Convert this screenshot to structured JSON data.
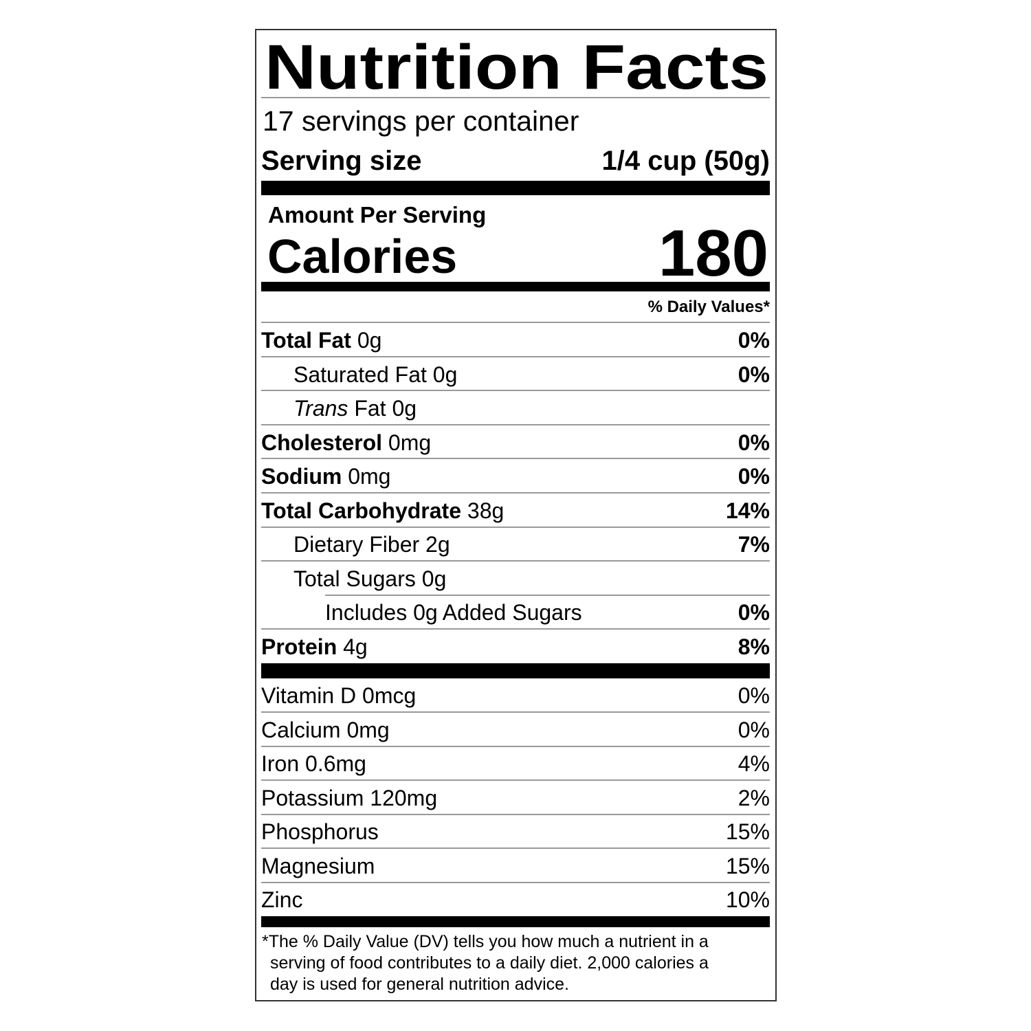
{
  "label": {
    "title": "Nutrition Facts",
    "servings_per_container": "17 servings per container",
    "serving_size_label": "Serving size",
    "serving_size_value": "1/4 cup (50g)",
    "amount_per_serving": "Amount Per Serving",
    "calories_label": "Calories",
    "calories_value": "180",
    "daily_values_header": "% Daily Values*",
    "nutrients": [
      {
        "name": "Total Fat",
        "amount": "0g",
        "dv": "0%"
      },
      {
        "name": "Saturated Fat",
        "amount": "0g",
        "dv": "0%"
      },
      {
        "name_italic": "Trans",
        "name": "Fat",
        "amount": "0g",
        "dv": ""
      },
      {
        "name": "Cholesterol",
        "amount": "0mg",
        "dv": "0%"
      },
      {
        "name": "Sodium",
        "amount": "0mg",
        "dv": "0%"
      },
      {
        "name": "Total Carbohydrate",
        "amount": "38g",
        "dv": "14%"
      },
      {
        "name": "Dietary Fiber",
        "amount": "2g",
        "dv": "7%"
      },
      {
        "name": "Total Sugars",
        "amount": "0g",
        "dv": ""
      },
      {
        "name": "Includes 0g Added Sugars",
        "amount": "",
        "dv": "0%"
      },
      {
        "name": "Protein",
        "amount": "4g",
        "dv": "8%"
      }
    ],
    "vitamins": [
      {
        "name": "Vitamin D 0mcg",
        "dv": "0%"
      },
      {
        "name": "Calcium 0mg",
        "dv": "0%"
      },
      {
        "name": "Iron 0.6mg",
        "dv": "4%"
      },
      {
        "name": "Potassium 120mg",
        "dv": "2%"
      },
      {
        "name": "Phosphorus",
        "dv": "15%"
      },
      {
        "name": "Magnesium",
        "dv": "15%"
      },
      {
        "name": "Zinc",
        "dv": "10%"
      }
    ],
    "footnote_lines": [
      "*The % Daily Value (DV) tells you how much a nutrient in a",
      " serving of food contributes to a daily diet. 2,000 calories a",
      " day is used for general nutrition advice."
    ]
  }
}
